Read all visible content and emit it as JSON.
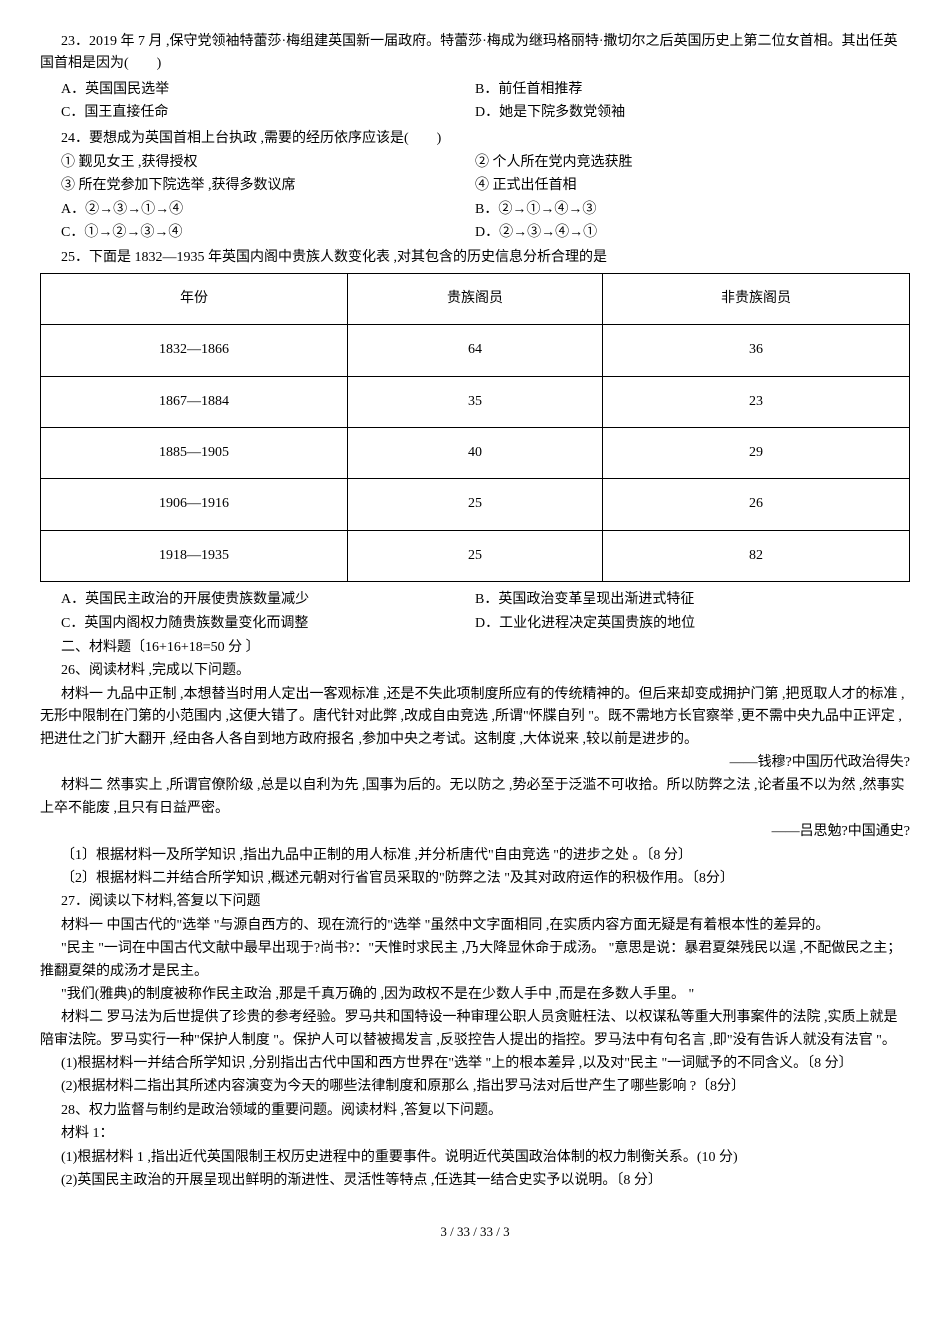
{
  "q23": {
    "stem": "23．2019 年 7 月 ,保守党领袖特蕾莎·梅组建英国新一届政府。特蕾莎·梅成为继玛格丽特·撒切尔之后英国历史上第二位女首相。其出任英国首相是因为(　　)",
    "A": "A．英国国民选举",
    "B": "B．前任首相推荐",
    "C": "C．国王直接任命",
    "D": "D．她是下院多数党领袖"
  },
  "q24": {
    "stem": "24．要想成为英国首相上台执政 ,需要的经历依序应该是(　　)",
    "l1": "① 觐见女王 ,获得授权",
    "l2": "② 个人所在党内竞选获胜",
    "l3": "③ 所在党参加下院选举 ,获得多数议席",
    "l4": "④ 正式出任首相",
    "A": "A．②→③→①→④",
    "B": "B．②→①→④→③",
    "C": "C．①→②→③→④",
    "D": "D．②→③→④→①"
  },
  "q25": {
    "stem": "25．下面是 1832—1935 年英国内阁中贵族人数变化表 ,对其包含的历史信息分析合理的是",
    "head": [
      "年份",
      "贵族阁员",
      "非贵族阁员"
    ],
    "rows": [
      [
        "1832—1866",
        "64",
        "36"
      ],
      [
        "1867—1884",
        "35",
        "23"
      ],
      [
        "1885—1905",
        "40",
        "29"
      ],
      [
        "1906—1916",
        "25",
        "26"
      ],
      [
        "1918—1935",
        "25",
        "82"
      ]
    ],
    "A": "A．英国民主政治的开展使贵族数量减少",
    "B": "B．英国政治变革呈现出渐进式特征",
    "C": "C．英国内阁权力随贵族数量变化而调整",
    "D": "D．工业化进程决定英国贵族的地位"
  },
  "section2": "二、材料题〔16+16+18=50 分 〕",
  "q26": {
    "opener": "26、阅读材料 ,完成以下问题。",
    "m1": "材料一  九品中正制 ,本想替当时用人定出一客观标准 ,还是不失此项制度所应有的传统精神的。但后来却变成拥护门第 ,把觅取人才的标准 ,无形中限制在门第的小范围内 ,这便大错了。唐代针对此弊 ,改成自由竞选 ,所谓\"怀牒自列 \"。既不需地方长官察举 ,更不需中央九品中正评定 ,把进仕之门扩大翻开 ,经由各人各自到地方政府报名 ,参加中央之考试。这制度 ,大体说来 ,较以前是进步的。",
    "src1": "——钱穆?中国历代政治得失?",
    "m2": "材料二  然事实上 ,所谓官僚阶级 ,总是以自利为先 ,国事为后的。无以防之 ,势必至于泛滥不可收拾。所以防弊之法 ,论者虽不以为然 ,然事实上卒不能废 ,且只有日益严密。",
    "src2": "——吕思勉?中国通史?",
    "sub1": "〔1〕根据材料一及所学知识 ,指出九品中正制的用人标准 ,并分析唐代\"自由竞选 \"的进步之处 。〔8 分〕",
    "sub2": "〔2〕根据材料二并结合所学知识 ,概述元朝对行省官员采取的\"防弊之法 \"及其对政府运作的积极作用。〔8分〕"
  },
  "q27": {
    "opener": "27．阅读以下材料,答复以下问题",
    "m1a": "材料一  中国古代的\"选举 \"与源自西方的、现在流行的\"选举 \"虽然中文字面相同 ,在实质内容方面无疑是有着根本性的差异的。",
    "m1b": "\"民主 \"一词在中国古代文献中最早出现于?尚书?：\"天惟时求民主 ,乃大降显休命于成汤。 \"意思是说：暴君夏桀残民以逞 ,不配做民之主；推翻夏桀的成汤才是民主。",
    "m1c": "\"我们(雅典)的制度被称作民主政治 ,那是千真万确的 ,因为政权不是在少数人手中 ,而是在多数人手里。  \"",
    "m2": "材料二  罗马法为后世提供了珍贵的参考经验。罗马共和国特设一种审理公职人员贪赃枉法、以权谋私等重大刑事案件的法院 ,实质上就是陪审法院。罗马实行一种\"保护人制度 \"。保护人可以替被揭发言 ,反驳控告人提出的指控。罗马法中有句名言 ,即\"没有告诉人就没有法官 \"。",
    "sub1": "(1)根据材料一并结合所学知识 ,分别指出古代中国和西方世界在\"选举 \"上的根本差异 ,以及对\"民主 \"一词赋予的不同含义。〔8 分〕",
    "sub2": "(2)根据材料二指出其所述内容演变为今天的哪些法律制度和原那么 ,指出罗马法对后世产生了哪些影响 ?〔8分〕"
  },
  "q28": {
    "opener": "28、权力监督与制约是政治领域的重要问题。阅读材料 ,答复以下问题。",
    "m1": "材料 1：",
    "sub1": "(1)根据材料 1 ,指出近代英国限制王权历史进程中的重要事件。说明近代英国政治体制的权力制衡关系。(10 分)",
    "sub2": "(2)英国民主政治的开展呈现出鲜明的渐进性、灵活性等特点 ,任选其一结合史实予以说明。〔8 分〕"
  },
  "footer": "3 / 33 / 33 / 3"
}
